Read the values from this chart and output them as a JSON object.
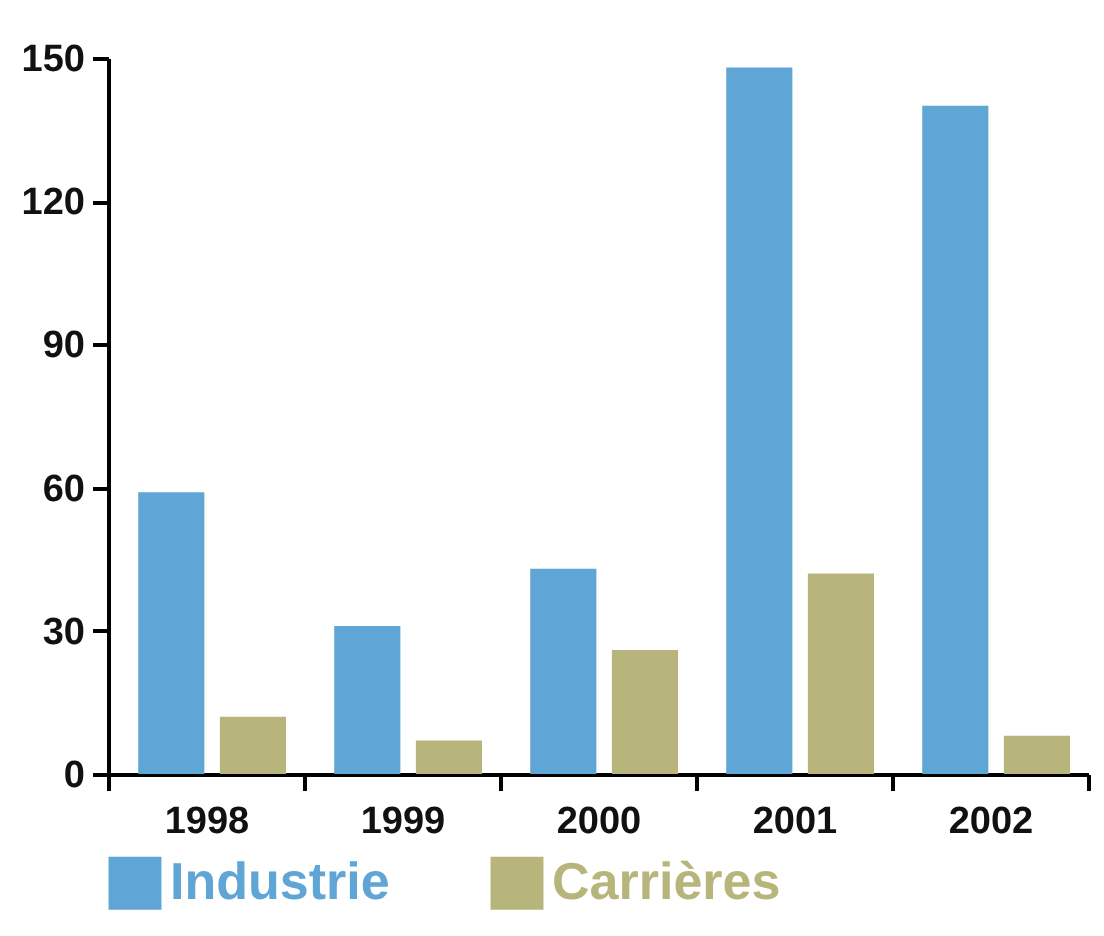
{
  "chart_data": {
    "type": "bar",
    "categories": [
      "1998",
      "1999",
      "2000",
      "2001",
      "2002"
    ],
    "series": [
      {
        "name": "Industrie",
        "color": "#5fa5d5",
        "values": [
          59,
          31,
          43,
          148,
          140
        ]
      },
      {
        "name": "Carrières",
        "color": "#b8b57c",
        "values": [
          12,
          7,
          26,
          42,
          8
        ]
      }
    ],
    "ylim": [
      0,
      150
    ],
    "yticks": [
      0,
      30,
      60,
      90,
      120,
      150
    ],
    "grid": false,
    "legend": "bottom"
  }
}
